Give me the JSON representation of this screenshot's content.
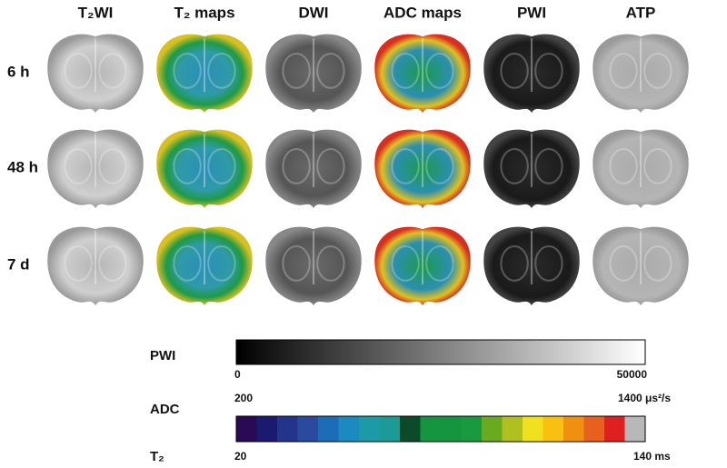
{
  "columns": [
    "T₂WI",
    "T₂ maps",
    "DWI",
    "ADC maps",
    "PWI",
    "ATP"
  ],
  "rows": [
    "6 h",
    "48 h",
    "7 d"
  ],
  "colorbars": {
    "pwi": {
      "label": "PWI",
      "min": "0",
      "max": "50000"
    },
    "adc": {
      "label": "ADC",
      "min": "200",
      "max": "1400 μs²/s"
    },
    "t2": {
      "label": "T₂",
      "min": "20",
      "max": "140 ms"
    }
  }
}
